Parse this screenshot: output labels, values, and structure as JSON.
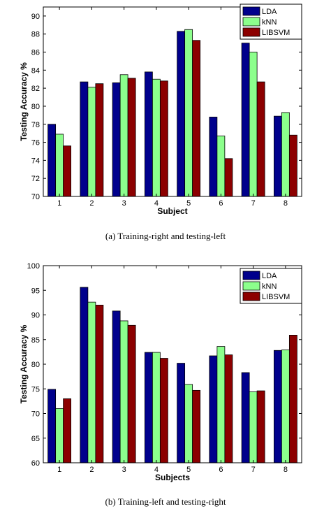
{
  "chart_data": [
    {
      "type": "bar",
      "caption": "(a)  Training-right  and  testing-left",
      "xlabel": "Subject",
      "ylabel": "Testing Accuracy %",
      "ylim": [
        70,
        91
      ],
      "yticks": [
        70,
        72,
        74,
        76,
        78,
        80,
        82,
        84,
        86,
        88,
        90
      ],
      "categories": [
        "1",
        "2",
        "3",
        "4",
        "5",
        "6",
        "7",
        "8"
      ],
      "legend_position": "top-right",
      "series": [
        {
          "name": "LDA",
          "color": "#00008c",
          "values": [
            78.0,
            82.7,
            82.6,
            83.8,
            88.3,
            78.8,
            87.0,
            78.9
          ]
        },
        {
          "name": "kNN",
          "color": "#8cff8c",
          "values": [
            76.9,
            82.1,
            83.5,
            83.0,
            88.5,
            76.7,
            86.0,
            79.3
          ]
        },
        {
          "name": "LIBSVM",
          "color": "#8c0000",
          "values": [
            75.6,
            82.5,
            83.1,
            82.8,
            87.3,
            74.2,
            82.7,
            76.8
          ]
        }
      ]
    },
    {
      "type": "bar",
      "caption": "(b)  Training-left  and  testing-right",
      "xlabel": "Subjects",
      "ylabel": "Testing Accuracy %",
      "ylim": [
        60,
        100
      ],
      "yticks": [
        60,
        65,
        70,
        75,
        80,
        85,
        90,
        95,
        100
      ],
      "categories": [
        "1",
        "2",
        "3",
        "4",
        "5",
        "6",
        "7",
        "8"
      ],
      "legend_position": "top-right",
      "series": [
        {
          "name": "LDA",
          "color": "#00008c",
          "values": [
            74.9,
            95.6,
            90.8,
            82.4,
            80.2,
            81.7,
            78.3,
            82.8
          ]
        },
        {
          "name": "kNN",
          "color": "#8cff8c",
          "values": [
            71.0,
            92.6,
            88.8,
            82.4,
            75.9,
            83.6,
            74.4,
            82.9
          ]
        },
        {
          "name": "LIBSVM",
          "color": "#8c0000",
          "values": [
            73.0,
            92.0,
            87.9,
            81.2,
            74.7,
            81.9,
            74.6,
            85.9
          ]
        }
      ]
    }
  ]
}
